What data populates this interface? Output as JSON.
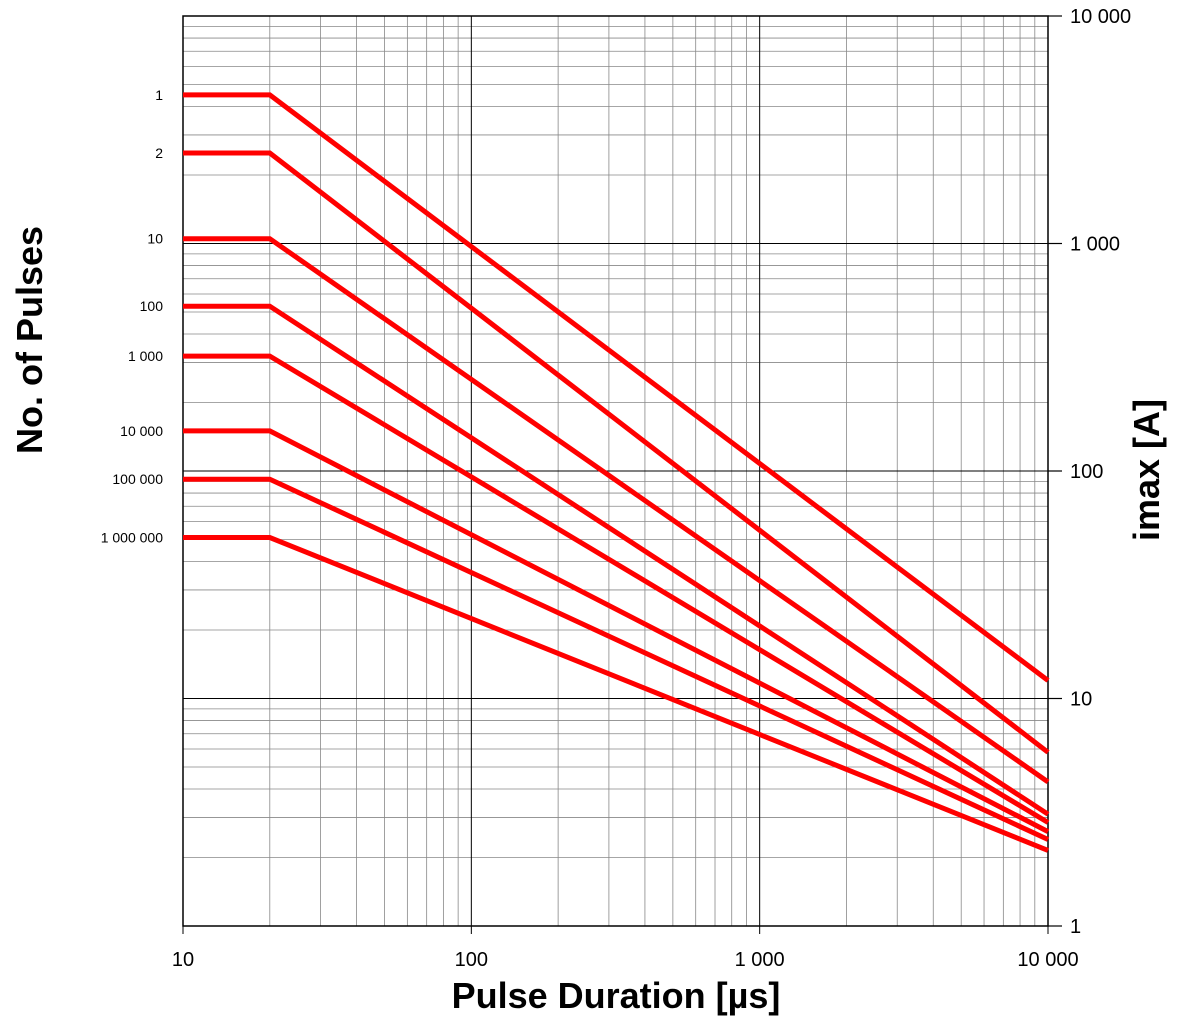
{
  "chart_data": {
    "type": "line",
    "x_scale": "log",
    "y_scale": "log",
    "xlim": [
      10,
      10000
    ],
    "ylim": [
      1,
      10000
    ],
    "grid": true,
    "xlabel": "Pulse Duration [µs]",
    "ylabel_right": "imax [A]",
    "ylabel_left": "No. of Pulses",
    "x_ticks": [
      {
        "value": 10,
        "label": "10"
      },
      {
        "value": 100,
        "label": "100"
      },
      {
        "value": 1000,
        "label": "1 000"
      },
      {
        "value": 10000,
        "label": "10 000"
      }
    ],
    "y_ticks": [
      {
        "value": 1,
        "label": "1"
      },
      {
        "value": 10,
        "label": "10"
      },
      {
        "value": 100,
        "label": "100"
      },
      {
        "value": 1000,
        "label": "1 000"
      },
      {
        "value": 10000,
        "label": "10 000"
      }
    ],
    "series_color": "#ff0000",
    "series": [
      {
        "name": "1",
        "x": [
          10,
          20,
          10000
        ],
        "y": [
          4500,
          4500,
          12
        ]
      },
      {
        "name": "2",
        "x": [
          10,
          20,
          10000
        ],
        "y": [
          2500,
          2500,
          5.8
        ]
      },
      {
        "name": "10",
        "x": [
          10,
          20,
          10000
        ],
        "y": [
          1050,
          1050,
          4.3
        ]
      },
      {
        "name": "100",
        "x": [
          10,
          20,
          10000
        ],
        "y": [
          530,
          530,
          3.1
        ]
      },
      {
        "name": "1 000",
        "x": [
          10,
          20,
          10000
        ],
        "y": [
          320,
          320,
          2.85
        ]
      },
      {
        "name": "10 000",
        "x": [
          10,
          20,
          10000
        ],
        "y": [
          150,
          150,
          2.6
        ]
      },
      {
        "name": "100 000",
        "x": [
          10,
          20,
          10000
        ],
        "y": [
          92,
          92,
          2.4
        ]
      },
      {
        "name": "1 000 000",
        "x": [
          10,
          20,
          10000
        ],
        "y": [
          51,
          51,
          2.15
        ]
      }
    ]
  }
}
